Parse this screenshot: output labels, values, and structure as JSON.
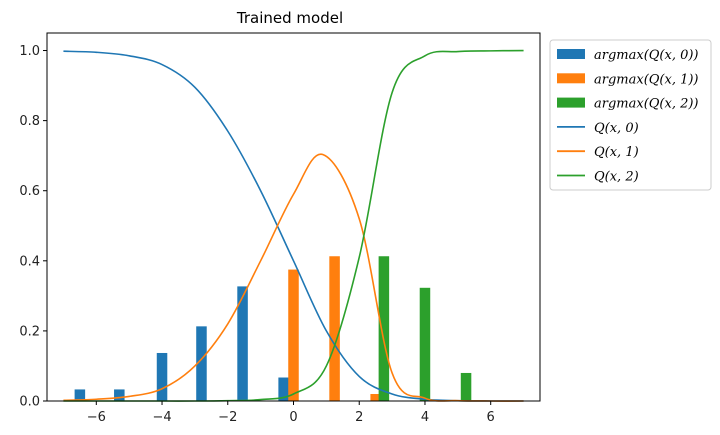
{
  "chart_data": {
    "type": "bar",
    "title": "Trained model",
    "xlabel": "",
    "ylabel": "",
    "xlim": [
      -7.5,
      7.5
    ],
    "ylim": [
      0,
      1.05
    ],
    "xticks": [
      -6,
      -4,
      -2,
      0,
      2,
      4,
      6
    ],
    "yticks": [
      0.0,
      0.2,
      0.4,
      0.6,
      0.8,
      1.0
    ],
    "xtick_labels": [
      "−6",
      "−4",
      "−2",
      "0",
      "2",
      "4",
      "6"
    ],
    "ytick_labels": [
      "0.0",
      "0.2",
      "0.4",
      "0.6",
      "0.8",
      "1.0"
    ],
    "grid": false,
    "legend_position": "outside right, top",
    "bar_series": [
      {
        "name": "argmax(Q(x,0))",
        "legend_label": "𝑎𝑟𝑔𝑚𝑎𝑥(𝑄(𝑥, 0))",
        "color": "#1f77b4",
        "x": [
          -6.5,
          -5.3,
          -4.0,
          -2.8,
          -1.55,
          -0.3,
          1.0,
          2.3,
          3.5,
          4.8,
          6.0
        ],
        "values": [
          0.033,
          0.033,
          0.137,
          0.213,
          0.327,
          0.067,
          0,
          0,
          0,
          0,
          0
        ]
      },
      {
        "name": "argmax(Q(x,1))",
        "legend_label": "𝑎𝑟𝑔𝑚𝑎𝑥(𝑄(𝑥, 1))",
        "color": "#ff7f0e",
        "x": [
          -6.25,
          -5.0,
          -3.75,
          -2.5,
          -1.25,
          0.0,
          1.25,
          2.5,
          3.75,
          5.0,
          6.25
        ],
        "values": [
          0,
          0,
          0,
          0,
          0,
          0.375,
          0.413,
          0.02,
          0,
          0,
          0
        ]
      },
      {
        "name": "argmax(Q(x,2))",
        "legend_label": "𝑎𝑟𝑔𝑚𝑎𝑥(𝑄(𝑥, 2))",
        "color": "#2ca02c",
        "x": [
          -6.0,
          -4.75,
          -3.5,
          -2.25,
          -1.0,
          0.25,
          1.5,
          2.75,
          4.0,
          5.25,
          6.5
        ],
        "values": [
          0,
          0,
          0,
          0,
          0,
          0,
          0,
          0.413,
          0.323,
          0.08,
          0
        ]
      }
    ],
    "line_series": [
      {
        "name": "Q(x,0)",
        "legend_label": "𝑄(𝑥, 0)",
        "color": "#1f77b4",
        "x": [
          -7,
          -6,
          -5,
          -4,
          -3,
          -2,
          -1,
          0,
          1,
          2,
          3,
          4,
          5,
          6,
          7
        ],
        "values": [
          0.998,
          0.995,
          0.985,
          0.96,
          0.895,
          0.77,
          0.6,
          0.4,
          0.2,
          0.07,
          0.02,
          0.005,
          0.001,
          0,
          0
        ]
      },
      {
        "name": "Q(x,1)",
        "legend_label": "𝑄(𝑥, 1)",
        "color": "#ff7f0e",
        "x": [
          -7,
          -6,
          -5,
          -4,
          -3,
          -2,
          -1,
          0,
          0.9,
          2,
          3,
          4,
          5,
          6,
          7
        ],
        "values": [
          0.002,
          0.005,
          0.013,
          0.035,
          0.1,
          0.22,
          0.4,
          0.59,
          0.703,
          0.52,
          0.08,
          0.008,
          0.001,
          0,
          0
        ]
      },
      {
        "name": "Q(x,2)",
        "legend_label": "𝑄(𝑥, 2)",
        "color": "#2ca02c",
        "x": [
          -7,
          -6,
          -5,
          -4,
          -3,
          -2,
          -1,
          0,
          1,
          2,
          3,
          4,
          5,
          6,
          7
        ],
        "values": [
          0,
          0,
          0,
          0,
          0,
          0.001,
          0.004,
          0.02,
          0.1,
          0.41,
          0.88,
          0.985,
          0.997,
          0.999,
          1.0
        ]
      }
    ]
  }
}
